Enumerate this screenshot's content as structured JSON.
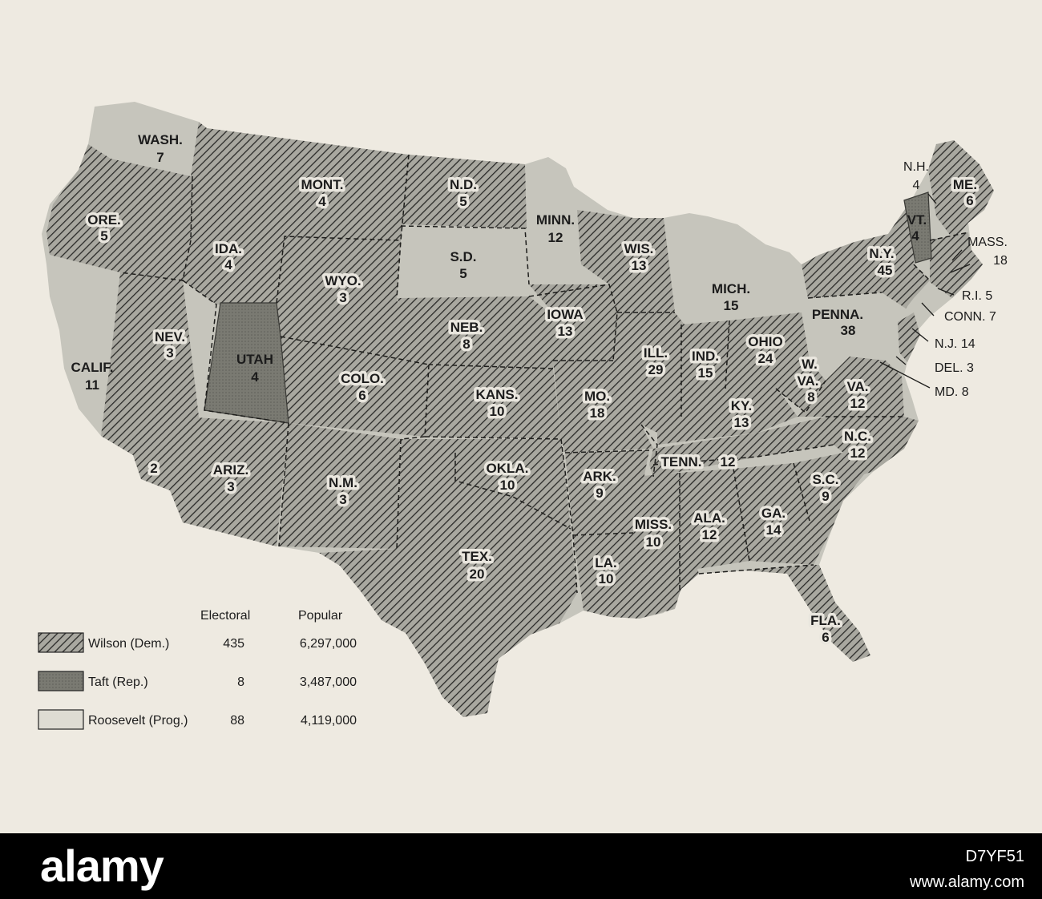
{
  "colors": {
    "wilson": "#8c8c84",
    "taft": "#707068",
    "roosevelt": "#c3c2b8",
    "paper": "#eeeae1"
  },
  "legend": {
    "col_electoral": "Electoral",
    "col_popular": "Popular",
    "rows": [
      {
        "name": "Wilson (Dem.)",
        "electoral": "435",
        "popular": "6,297,000"
      },
      {
        "name": "Taft (Rep.)",
        "electoral": "8",
        "popular": "3,487,000"
      },
      {
        "name": "Roosevelt (Prog.)",
        "electoral": "88",
        "popular": "4,119,000"
      }
    ]
  },
  "states": {
    "wash": {
      "abbr": "WASH.",
      "votes": "7",
      "party": "roosevelt"
    },
    "ore": {
      "abbr": "ORE.",
      "votes": "5",
      "party": "wilson"
    },
    "calif": {
      "abbr": "CALIF.",
      "votes": "11",
      "party": "roosevelt"
    },
    "calif_wilson": {
      "votes": "2",
      "party": "wilson"
    },
    "nev": {
      "abbr": "NEV.",
      "votes": "3",
      "party": "wilson"
    },
    "ida": {
      "abbr": "IDA.",
      "votes": "4",
      "party": "wilson"
    },
    "mont": {
      "abbr": "MONT.",
      "votes": "4",
      "party": "wilson"
    },
    "wyo": {
      "abbr": "WYO.",
      "votes": "3",
      "party": "wilson"
    },
    "utah": {
      "abbr": "UTAH",
      "votes": "4",
      "party": "taft"
    },
    "colo": {
      "abbr": "COLO.",
      "votes": "6",
      "party": "wilson"
    },
    "ariz": {
      "abbr": "ARIZ.",
      "votes": "3",
      "party": "wilson"
    },
    "nm": {
      "abbr": "N.M.",
      "votes": "3",
      "party": "wilson"
    },
    "nd": {
      "abbr": "N.D.",
      "votes": "5",
      "party": "wilson"
    },
    "sd": {
      "abbr": "S.D.",
      "votes": "5",
      "party": "roosevelt"
    },
    "neb": {
      "abbr": "NEB.",
      "votes": "8",
      "party": "wilson"
    },
    "kans": {
      "abbr": "KANS.",
      "votes": "10",
      "party": "wilson"
    },
    "okla": {
      "abbr": "OKLA.",
      "votes": "10",
      "party": "wilson"
    },
    "tex": {
      "abbr": "TEX.",
      "votes": "20",
      "party": "wilson"
    },
    "minn": {
      "abbr": "MINN.",
      "votes": "12",
      "party": "roosevelt"
    },
    "iowa": {
      "abbr": "IOWA",
      "votes": "13",
      "party": "wilson"
    },
    "mo": {
      "abbr": "MO.",
      "votes": "18",
      "party": "wilson"
    },
    "ark": {
      "abbr": "ARK.",
      "votes": "9",
      "party": "wilson"
    },
    "la": {
      "abbr": "LA.",
      "votes": "10",
      "party": "wilson"
    },
    "wis": {
      "abbr": "WIS.",
      "votes": "13",
      "party": "wilson"
    },
    "ill": {
      "abbr": "ILL.",
      "votes": "29",
      "party": "wilson"
    },
    "mich": {
      "abbr": "MICH.",
      "votes": "15",
      "party": "roosevelt"
    },
    "ind": {
      "abbr": "IND.",
      "votes": "15",
      "party": "wilson"
    },
    "ohio": {
      "abbr": "OHIO",
      "votes": "24",
      "party": "wilson"
    },
    "ky": {
      "abbr": "KY.",
      "votes": "13",
      "party": "wilson"
    },
    "tenn": {
      "abbr": "TENN.",
      "votes": "12",
      "party": "wilson"
    },
    "miss": {
      "abbr": "MISS.",
      "votes": "10",
      "party": "wilson"
    },
    "ala": {
      "abbr": "ALA.",
      "votes": "12",
      "party": "wilson"
    },
    "ga": {
      "abbr": "GA.",
      "votes": "14",
      "party": "wilson"
    },
    "fla": {
      "abbr": "FLA.",
      "votes": "6",
      "party": "wilson"
    },
    "sc": {
      "abbr": "S.C.",
      "votes": "9",
      "party": "wilson"
    },
    "nc": {
      "abbr": "N.C.",
      "votes": "12",
      "party": "wilson"
    },
    "va": {
      "abbr": "VA.",
      "votes": "12",
      "party": "wilson"
    },
    "wva_a": {
      "abbr": "W.",
      "party": "wilson"
    },
    "wva_b": {
      "abbr": "VA.",
      "votes": "8",
      "party": "wilson"
    },
    "penna": {
      "abbr": "PENNA.",
      "votes": "38",
      "party": "roosevelt"
    },
    "ny": {
      "abbr": "N.Y.",
      "votes": "45",
      "party": "wilson"
    },
    "vt": {
      "abbr": "VT.",
      "votes": "4",
      "party": "taft"
    },
    "nh": {
      "abbr": "N.H.",
      "votes": "4",
      "party": "wilson"
    },
    "me": {
      "abbr": "ME.",
      "votes": "6",
      "party": "wilson"
    },
    "mass": {
      "abbr": "MASS.",
      "votes": "18",
      "party": "wilson"
    },
    "ri": {
      "label": "R.I. 5",
      "party": "wilson"
    },
    "conn": {
      "label": "CONN. 7",
      "party": "wilson"
    },
    "nj": {
      "label": "N.J. 14",
      "party": "wilson"
    },
    "del": {
      "label": "DEL. 3",
      "party": "wilson"
    },
    "md": {
      "label": "MD. 8",
      "party": "wilson"
    }
  },
  "watermark": {
    "brand": "alamy",
    "image_id": "D7YF51",
    "url": "www.alamy.com"
  }
}
